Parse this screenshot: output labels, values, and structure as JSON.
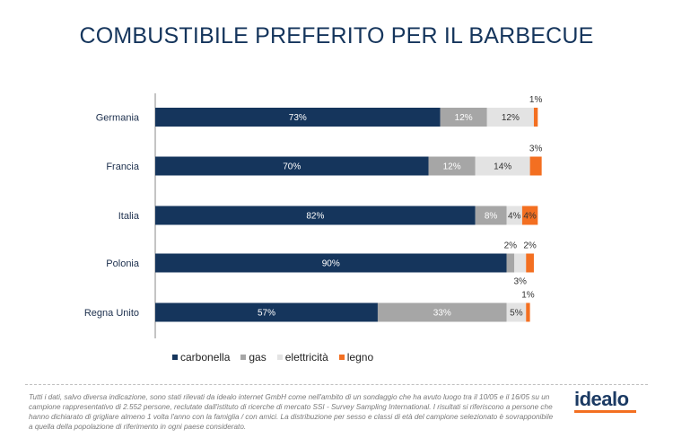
{
  "title": "COMBUSTIBILE PREFERITO PER IL BARBECUE",
  "colors": {
    "carbonella": "#15355c",
    "gas": "#a6a6a6",
    "elettricita": "#e3e3e3",
    "legno": "#f36f21",
    "accent": "#f36f21"
  },
  "chart_data": {
    "type": "bar",
    "orientation": "horizontal",
    "stacked": true,
    "categories": [
      "Germania",
      "Francia",
      "Italia",
      "Polonia",
      "Regna Unito"
    ],
    "series": [
      {
        "name": "carbonella",
        "values": [
          73,
          70,
          82,
          90,
          57
        ],
        "labels": [
          "73%",
          "70%",
          "82%",
          "90%",
          "57%"
        ]
      },
      {
        "name": "gas",
        "values": [
          12,
          12,
          8,
          2,
          33
        ],
        "labels": [
          "12%",
          "12%",
          "8%",
          "2%",
          "33%"
        ]
      },
      {
        "name": "elettricità",
        "values": [
          12,
          14,
          4,
          3,
          5
        ],
        "labels": [
          "12%",
          "14%",
          "4%",
          "3%",
          "5%"
        ]
      },
      {
        "name": "legno",
        "values": [
          1,
          3,
          4,
          2,
          1
        ],
        "labels": [
          "1%",
          "3%",
          "4%",
          "2%",
          "1%"
        ]
      }
    ],
    "xlim": [
      0,
      100
    ],
    "grid": false,
    "legend_position": "bottom"
  },
  "legend": [
    "carbonella",
    "gas",
    "elettricità",
    "legno"
  ],
  "footnote": "Tutti i dati, salvo diversa indicazione, sono stati rilevati da idealo internet GmbH come nell'ambito di un sondaggio che ha avuto luogo tra il 10/05 e il 16/05 su un campione rappresentativo di 2.552 persone, reclutate dall'istituto di ricerche di mercato SSI - Survey Sampling International. I risultati si riferiscono a persone che hanno dichiarato di grigliare almeno 1 volta l'anno con la famiglia / con amici.  La distribuzione per sesso e classi di età del campione selezionato è sovrapponibile a quella della popolazione di riferimento in ogni paese considerato.",
  "logo": "idealo"
}
